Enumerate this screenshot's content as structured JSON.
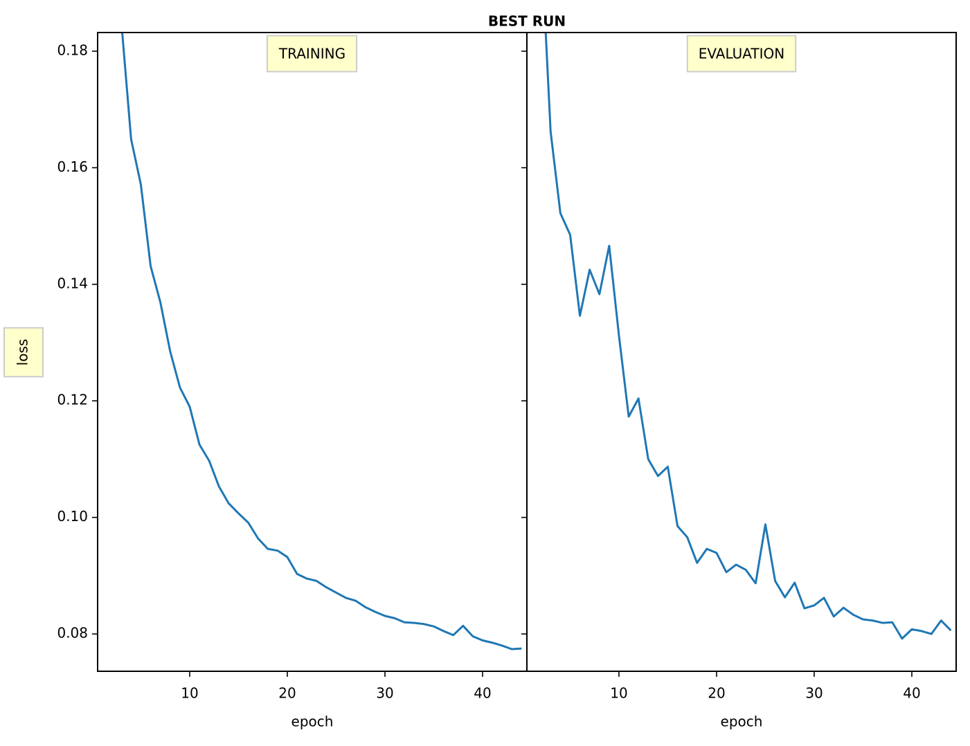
{
  "title": "BEST RUN",
  "chart_data": [
    {
      "type": "line",
      "title": "TRAINING",
      "xlabel": "epoch",
      "ylabel": "loss",
      "x": [
        3,
        4,
        5,
        6,
        7,
        8,
        9,
        10,
        11,
        12,
        13,
        14,
        15,
        16,
        17,
        18,
        19,
        20,
        21,
        22,
        23,
        24,
        25,
        26,
        27,
        28,
        29,
        30,
        31,
        32,
        33,
        34,
        35,
        36,
        37,
        38,
        39,
        40,
        41,
        42,
        43,
        44
      ],
      "values": [
        0.185,
        0.1649,
        0.1571,
        0.1431,
        0.1369,
        0.1285,
        0.1223,
        0.119,
        0.1125,
        0.1097,
        0.1053,
        0.1024,
        0.1007,
        0.0991,
        0.0964,
        0.0946,
        0.0943,
        0.0932,
        0.0903,
        0.0895,
        0.0891,
        0.088,
        0.0871,
        0.0862,
        0.0857,
        0.0846,
        0.0838,
        0.0831,
        0.0827,
        0.082,
        0.0819,
        0.0817,
        0.0813,
        0.0805,
        0.0798,
        0.0814,
        0.0796,
        0.0789,
        0.0785,
        0.078,
        0.0774,
        0.0775
      ],
      "color": "#1f77b4",
      "xlim": [
        0.57,
        44.54
      ],
      "xticks": [
        10,
        20,
        30,
        40
      ],
      "ylim": [
        0.0736,
        0.1832
      ],
      "yticks": [
        0.08,
        {
          "value": 0.1,
          "label": "0.10"
        },
        0.12,
        0.14,
        0.16,
        0.18
      ]
    },
    {
      "type": "line",
      "title": "EVALUATION",
      "xlabel": "epoch",
      "x": [
        2,
        3,
        4,
        5,
        6,
        7,
        8,
        9,
        10,
        11,
        12,
        13,
        14,
        15,
        16,
        17,
        18,
        19,
        20,
        21,
        22,
        23,
        24,
        25,
        26,
        27,
        28,
        29,
        30,
        31,
        32,
        33,
        34,
        35,
        36,
        37,
        38,
        39,
        40,
        41,
        42,
        43,
        44
      ],
      "values": [
        0.2,
        0.1662,
        0.1522,
        0.1485,
        0.1346,
        0.1425,
        0.1383,
        0.1466,
        0.1312,
        0.1173,
        0.1204,
        0.11,
        0.1071,
        0.1087,
        0.0985,
        0.0966,
        0.0922,
        0.0946,
        0.0939,
        0.0906,
        0.0919,
        0.091,
        0.0887,
        0.0988,
        0.0891,
        0.0863,
        0.0888,
        0.0844,
        0.0849,
        0.0862,
        0.083,
        0.0845,
        0.0833,
        0.0825,
        0.0823,
        0.0819,
        0.082,
        0.0792,
        0.0808,
        0.0805,
        0.08,
        0.0823,
        0.0806
      ],
      "color": "#1f77b4",
      "xlim": [
        0.57,
        44.54
      ],
      "xticks": [
        10,
        20,
        30,
        40
      ],
      "ylim": [
        0.0736,
        0.1832
      ],
      "yticks": [
        0.08,
        {
          "value": 0.1,
          "label": "0.10"
        },
        0.12,
        0.14,
        0.16,
        0.18
      ]
    }
  ]
}
